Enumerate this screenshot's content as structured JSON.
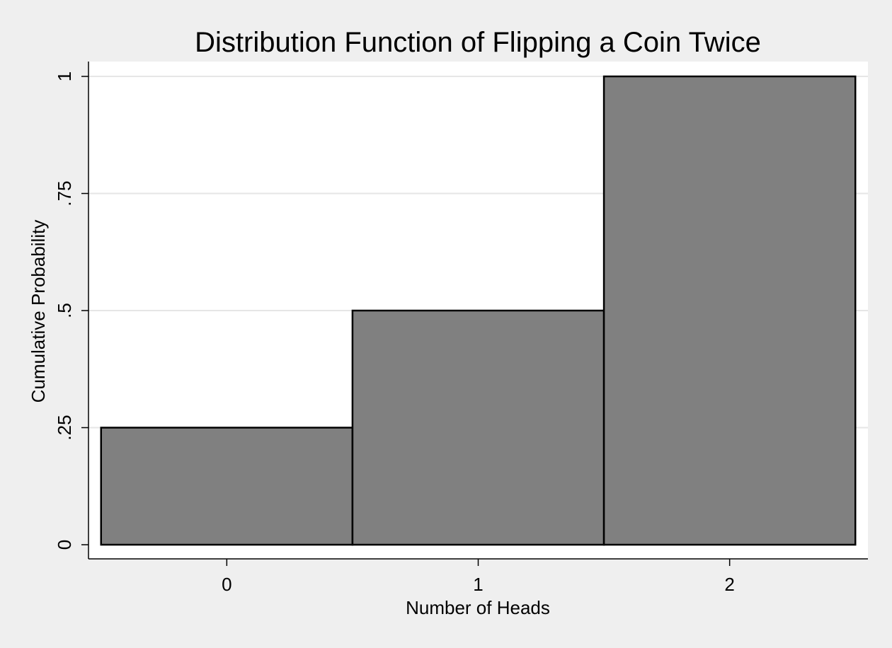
{
  "chart_data": {
    "type": "bar",
    "title": "Distribution Function of Flipping a Coin Twice",
    "xlabel": "Number of Heads",
    "ylabel": "Cumulative Probability",
    "categories": [
      "0",
      "1",
      "2"
    ],
    "values": [
      0.25,
      0.5,
      1
    ],
    "ylim": [
      0,
      1
    ],
    "yticks": [
      0,
      0.25,
      0.5,
      0.75,
      1
    ],
    "ytick_labels": [
      "0",
      ".25",
      ".5",
      ".75",
      "1"
    ],
    "xticks": [
      0,
      1,
      2
    ],
    "xtick_labels": [
      "0",
      "1",
      "2"
    ],
    "grid": true,
    "colors": {
      "bar_fill": "#808080",
      "bar_stroke": "#000000",
      "plot_background": "#ffffff",
      "outer_background": "#efefef",
      "gridline": "#e6e6e6"
    }
  }
}
